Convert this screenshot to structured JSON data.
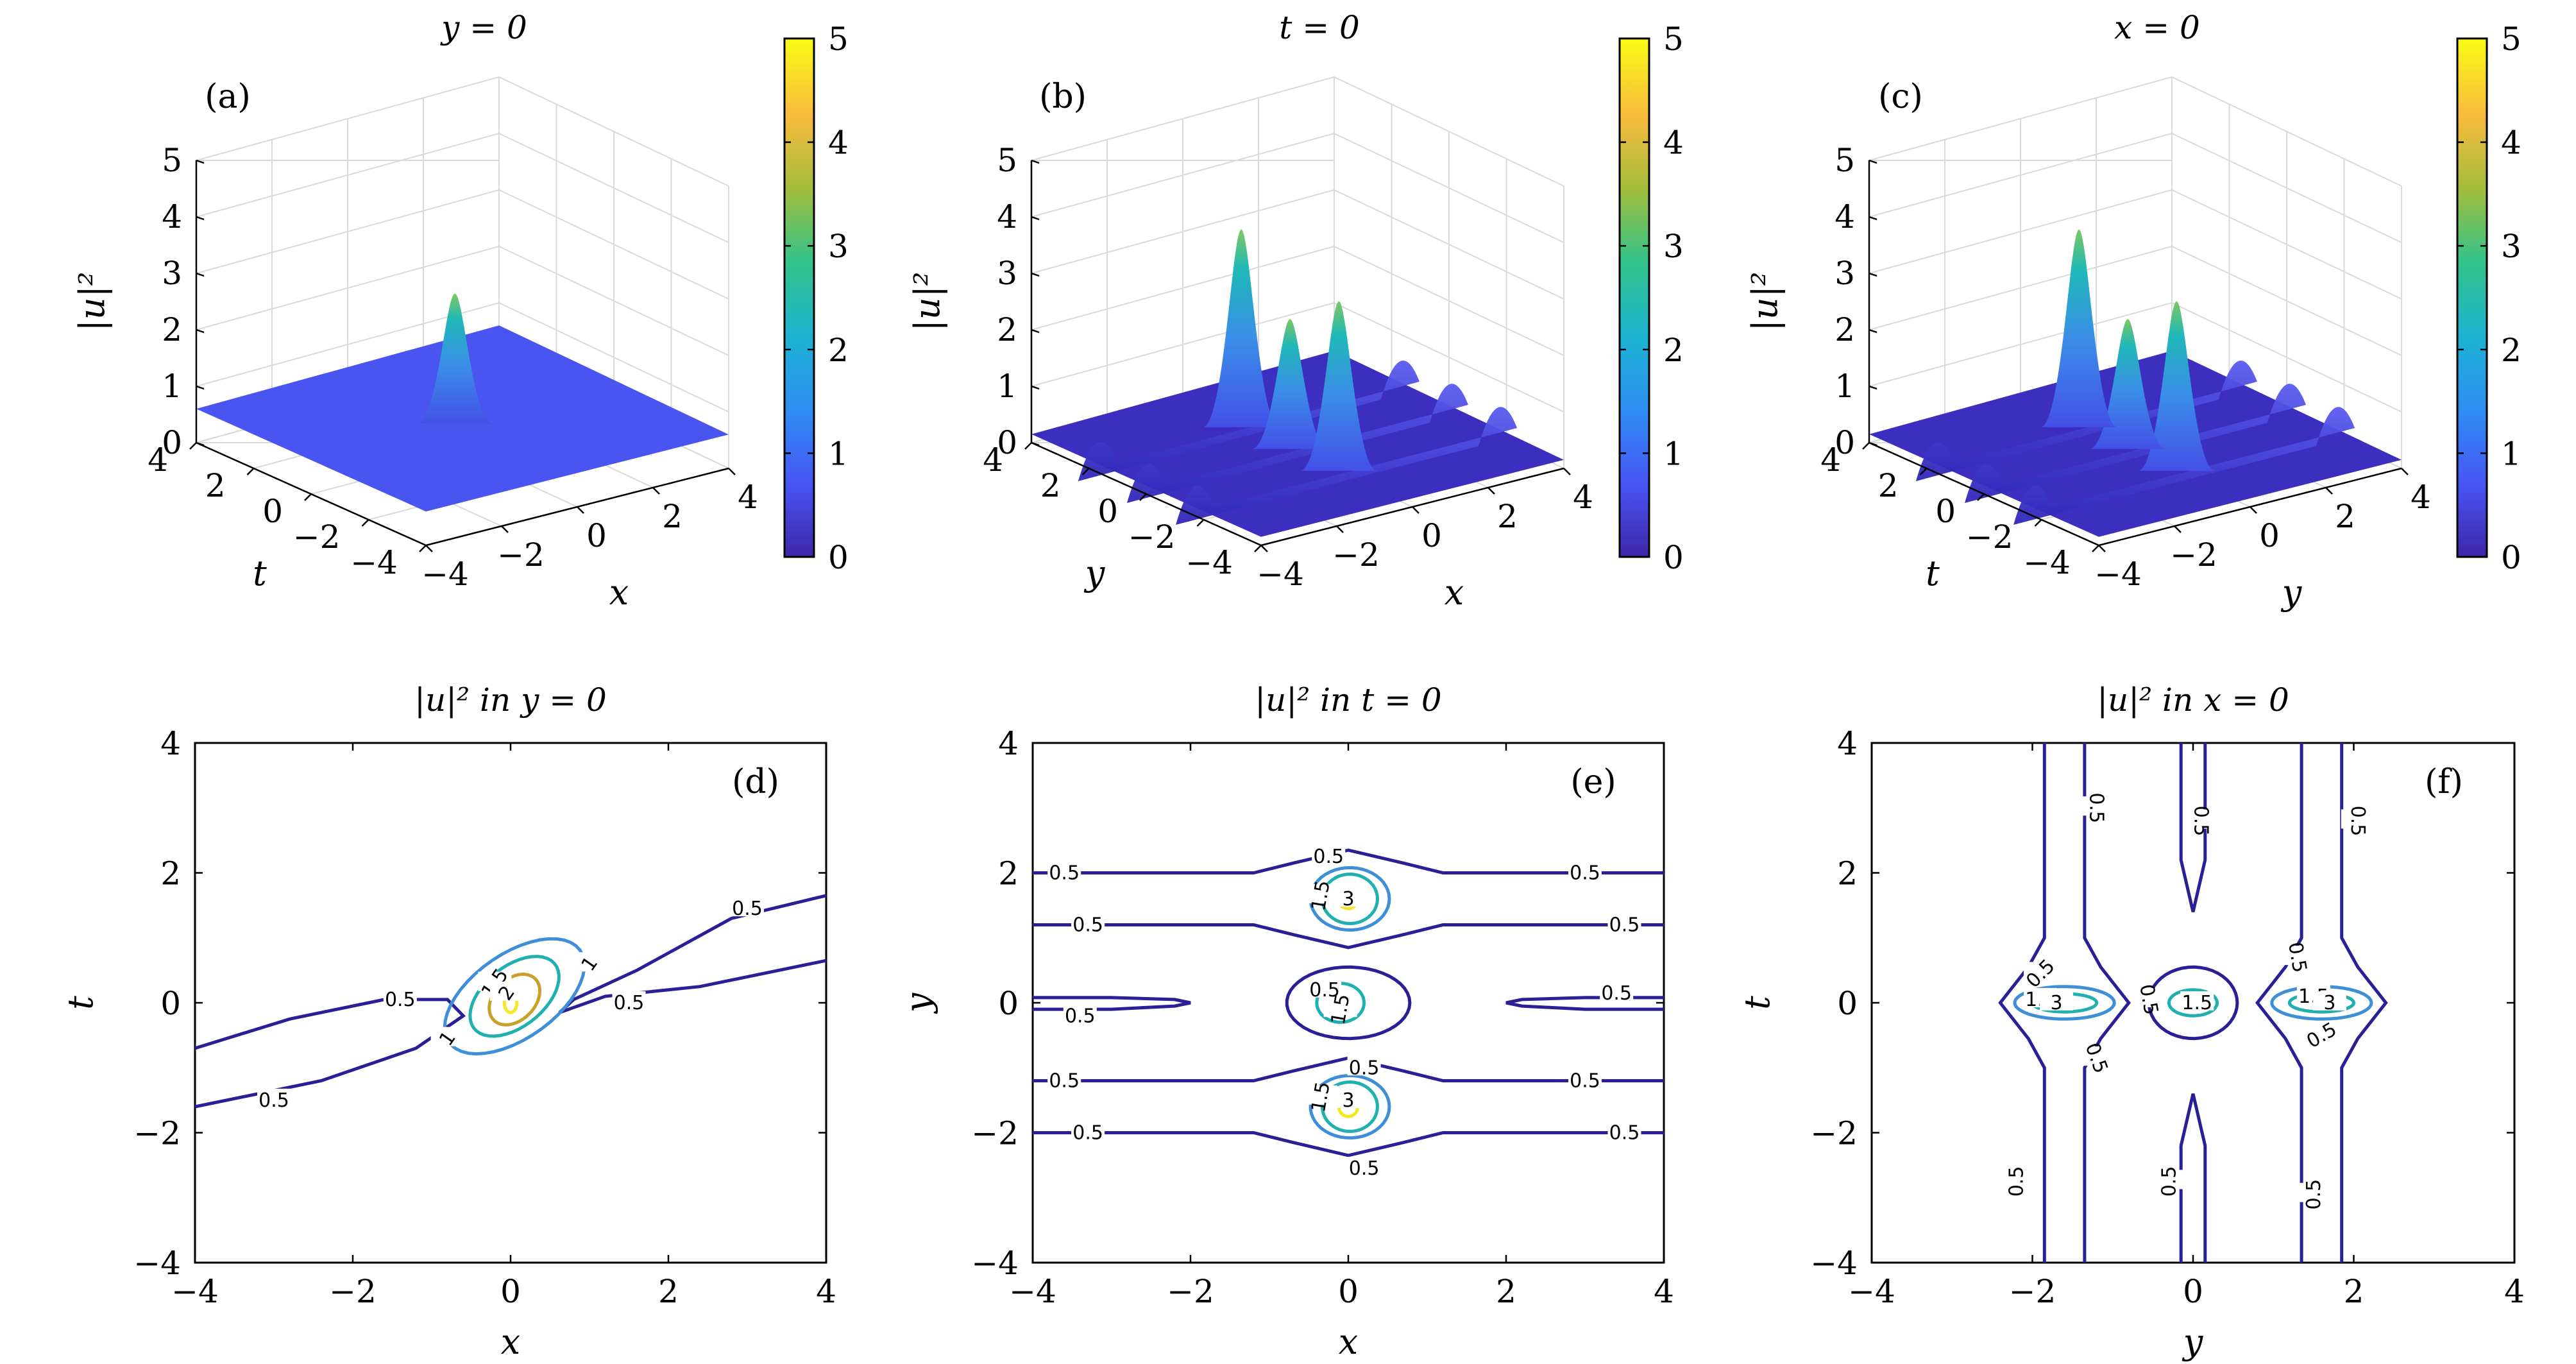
{
  "chart_data": [
    {
      "panel": "(a)",
      "type": "surface3d",
      "title": "y = 0",
      "axes": {
        "x": "x",
        "y": "t",
        "z": "|u|²"
      },
      "xlim": [
        -4,
        4
      ],
      "ylim": [
        -4,
        4
      ],
      "zlim": [
        0,
        5
      ],
      "xticks": [
        "−4",
        "−2",
        "0",
        "2",
        "4"
      ],
      "yticks": [
        "−4",
        "−2",
        "0",
        "2",
        "4"
      ],
      "zticks": [
        "0",
        "1",
        "2",
        "3",
        "4",
        "5"
      ],
      "background": 0.6,
      "peaks": [
        {
          "x": 0,
          "t": 0,
          "z": 2.3
        }
      ],
      "colorbar": {
        "min": 0,
        "max": 5,
        "ticks": [
          "0",
          "1",
          "2",
          "3",
          "4",
          "5"
        ]
      }
    },
    {
      "panel": "(b)",
      "type": "surface3d",
      "title": "t = 0",
      "axes": {
        "x": "x",
        "y": "y",
        "z": "|u|²"
      },
      "xlim": [
        -4,
        4
      ],
      "ylim": [
        -4,
        4
      ],
      "zlim": [
        0,
        5
      ],
      "xticks": [
        "−4",
        "−2",
        "0",
        "2",
        "4"
      ],
      "yticks": [
        "−4",
        "−2",
        "0",
        "2",
        "4"
      ],
      "zticks": [
        "0",
        "1",
        "2",
        "3",
        "4",
        "5"
      ],
      "ridges_at_y": [
        -1.7,
        0,
        1.7
      ],
      "ridge_height": 0.8,
      "peaks": [
        {
          "x": 0,
          "y": 1.7,
          "z": 3.5
        },
        {
          "x": 0,
          "y": 0,
          "z": 2.3
        },
        {
          "x": 0,
          "y": -1.7,
          "z": 3.0
        }
      ],
      "colorbar": {
        "min": 0,
        "max": 5,
        "ticks": [
          "0",
          "1",
          "2",
          "3",
          "4",
          "5"
        ]
      }
    },
    {
      "panel": "(c)",
      "type": "surface3d",
      "title": "x = 0",
      "axes": {
        "x": "y",
        "y": "t",
        "z": "|u|²"
      },
      "xlim": [
        -4,
        4
      ],
      "ylim": [
        -4,
        4
      ],
      "zlim": [
        0,
        5
      ],
      "xticks": [
        "−4",
        "−2",
        "0",
        "2",
        "4"
      ],
      "yticks": [
        "−4",
        "−2",
        "0",
        "2",
        "4"
      ],
      "zticks": [
        "0",
        "1",
        "2",
        "3",
        "4",
        "5"
      ],
      "ridges_at_y": [
        -1.7,
        0,
        1.7
      ],
      "ridge_height": 0.8,
      "peaks": [
        {
          "y": -1.7,
          "t": 0,
          "z": 3.0
        },
        {
          "y": 0,
          "t": 0,
          "z": 2.3
        },
        {
          "y": 1.7,
          "t": 0,
          "z": 3.5
        }
      ],
      "colorbar": {
        "min": 0,
        "max": 5,
        "ticks": [
          "0",
          "1",
          "2",
          "3",
          "4",
          "5"
        ]
      }
    },
    {
      "panel": "(d)",
      "type": "contour",
      "title": "|u|² in y = 0",
      "xlabel": "x",
      "ylabel": "t",
      "xlim": [
        -4,
        4
      ],
      "ylim": [
        -4,
        4
      ],
      "xticks": [
        "−4",
        "−2",
        "0",
        "2",
        "4"
      ],
      "yticks": [
        "−4",
        "−2",
        "0",
        "2",
        "4"
      ],
      "levels": [
        "0.5",
        "1",
        "1.5",
        "2",
        "3"
      ]
    },
    {
      "panel": "(e)",
      "type": "contour",
      "title": "|u|² in t = 0",
      "xlabel": "x",
      "ylabel": "y",
      "xlim": [
        -4,
        4
      ],
      "ylim": [
        -4,
        4
      ],
      "xticks": [
        "−4",
        "−2",
        "0",
        "2",
        "4"
      ],
      "yticks": [
        "−4",
        "−2",
        "0",
        "2",
        "4"
      ],
      "levels": [
        "0.5",
        "1",
        "1.5",
        "3"
      ]
    },
    {
      "panel": "(f)",
      "type": "contour",
      "title": "|u|² in x = 0",
      "xlabel": "y",
      "ylabel": "t",
      "xlim": [
        -4,
        4
      ],
      "ylim": [
        -4,
        4
      ],
      "xticks": [
        "−4",
        "−2",
        "0",
        "2",
        "4"
      ],
      "yticks": [
        "−4",
        "−2",
        "0",
        "2",
        "4"
      ],
      "levels": [
        "0.5",
        "1",
        "1.5",
        "3"
      ]
    }
  ],
  "colors": {
    "level_0_5": "#2a1f96",
    "level_1": "#3f8fd8",
    "level_1_5": "#20b0b0",
    "level_2": "#c8a02a",
    "level_3": "#f5e626",
    "colormap": [
      "#3e26a8",
      "#4755f5",
      "#2f8cf3",
      "#1cb2d3",
      "#33c38a",
      "#a3bd3b",
      "#f8ba3d",
      "#f9fb15"
    ]
  }
}
